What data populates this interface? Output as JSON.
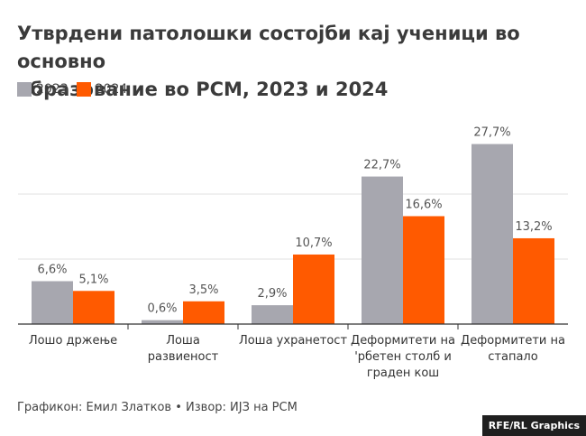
{
  "chart_data": {
    "type": "bar",
    "title": "Утврдени патолошки состојби кај ученици во основно образование во РСМ, 2023 и 2024",
    "title_lines": [
      "Утврдени патолошки состојби кај ученици во основно",
      "образование во РСМ, 2023 и 2024"
    ],
    "categories": [
      [
        "Лошо држење"
      ],
      [
        "Лоша",
        "развиеност"
      ],
      [
        "Лоша ухранетост"
      ],
      [
        "Деформитети на",
        "'рбетен столб и",
        "граден кош"
      ],
      [
        "Деформитети на",
        "стапало"
      ]
    ],
    "series": [
      {
        "name": "2023",
        "color": "#a7a7af",
        "values": [
          6.6,
          0.6,
          2.9,
          22.7,
          27.7
        ],
        "labels": [
          "6,6%",
          "0,6%",
          "2,9%",
          "22,7%",
          "27,7%"
        ]
      },
      {
        "name": "2024",
        "color": "#ff5a00",
        "values": [
          5.1,
          3.5,
          10.7,
          16.6,
          13.2
        ],
        "labels": [
          "5,1%",
          "3,5%",
          "10,7%",
          "16,6%",
          "13,2%"
        ]
      }
    ],
    "xlabel": "",
    "ylabel": "",
    "ylim": [
      0,
      30
    ],
    "gridlines": [
      10,
      20
    ],
    "legend_position": "top-left"
  },
  "footer": {
    "text": "Графикон: Емил Златков • Извор: ИЈЗ на РСМ"
  },
  "credit": "RFE/RL Graphics"
}
